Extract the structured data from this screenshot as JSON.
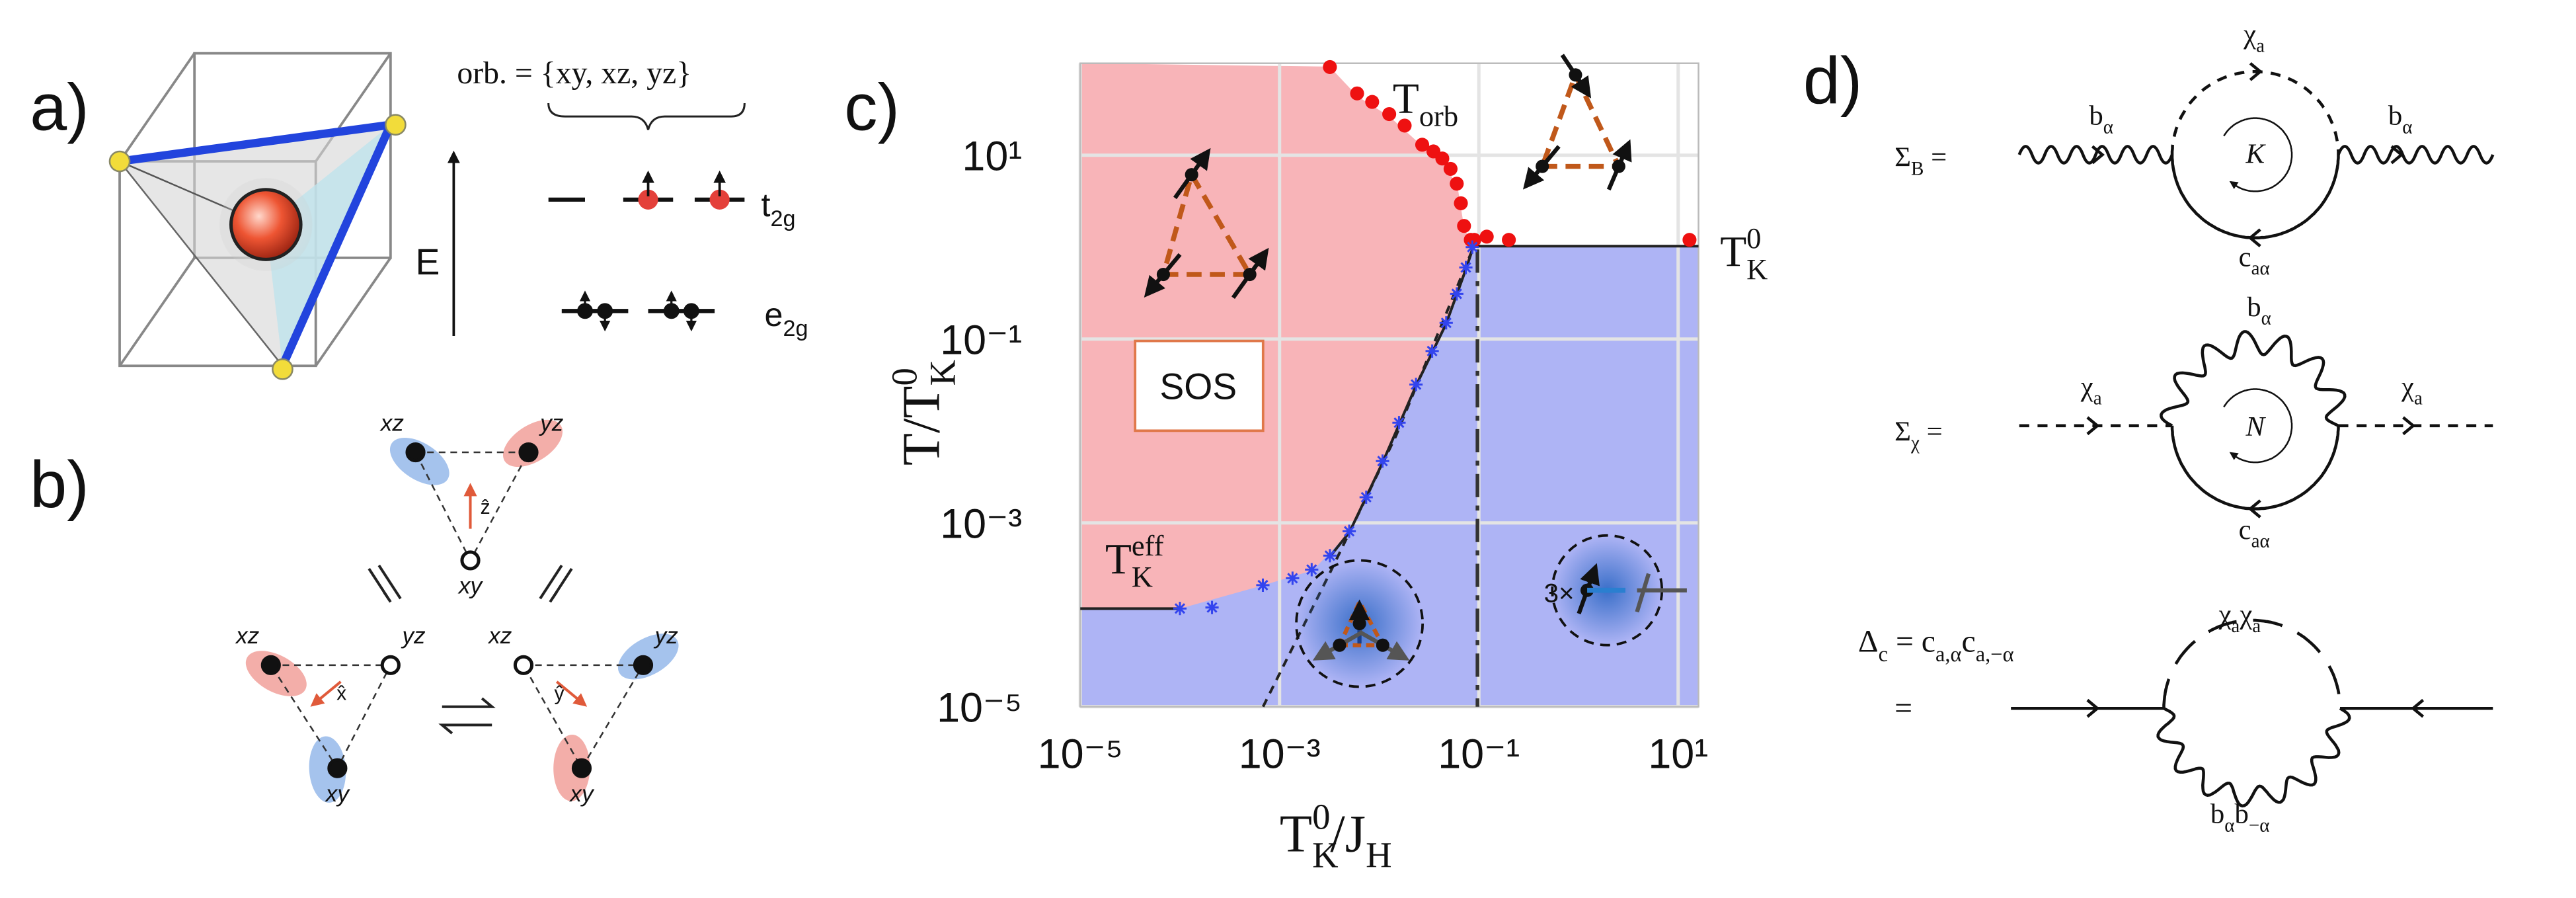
{
  "panels": {
    "a": {
      "label": "a)",
      "orbitals": "orb. = {xy, xz, yz}",
      "energy": "E",
      "t2g": [
        {
          "t": "t"
        },
        {
          "t": "2g",
          "s": "sub"
        }
      ],
      "e2g": [
        {
          "t": "e"
        },
        {
          "t": "2g",
          "s": "sub"
        }
      ]
    },
    "b": {
      "label": "b)",
      "triangles": [
        {
          "labels": [
            "xz",
            "yz",
            "xy"
          ],
          "axis": "ẑ"
        },
        {
          "labels": [
            "xz",
            "yz",
            "xy"
          ],
          "axis": "x̂"
        },
        {
          "labels": [
            "xz",
            "yz",
            "xy"
          ],
          "axis": "ŷ"
        }
      ]
    },
    "d": {
      "label": "d)",
      "sigma_b": [
        {
          "t": "Σ"
        },
        {
          "t": "B",
          "s": "sub"
        },
        {
          "t": " ="
        }
      ],
      "sigma_chi": [
        {
          "t": "Σ"
        },
        {
          "t": "χ",
          "s": "sub"
        },
        {
          "t": " ="
        }
      ],
      "delta": [
        {
          "t": "Δ"
        },
        {
          "t": "c",
          "s": "sub"
        },
        {
          "t": " = c"
        },
        {
          "t": "a,α",
          "s": "sub"
        },
        {
          "t": "c"
        },
        {
          "t": "a,−α",
          "s": "sub"
        }
      ],
      "equals": "=",
      "b_alpha": [
        {
          "t": "b"
        },
        {
          "t": "α",
          "s": "sub"
        }
      ],
      "chi_a": [
        {
          "t": "χ"
        },
        {
          "t": "a",
          "s": "sub"
        }
      ],
      "c_a_alpha": [
        {
          "t": "c"
        },
        {
          "t": "aα",
          "s": "sub"
        }
      ],
      "K": "K",
      "N": "N",
      "chi_chi": [
        {
          "t": "χ"
        },
        {
          "t": "a",
          "s": "sub"
        },
        {
          "t": "χ"
        },
        {
          "t": "a",
          "s": "sub"
        }
      ],
      "b_b": [
        {
          "t": "b"
        },
        {
          "t": "α",
          "s": "sub"
        },
        {
          "t": "b"
        },
        {
          "t": "−α",
          "s": "sub"
        }
      ]
    }
  },
  "chart_data": {
    "type": "scatter",
    "label": "c)",
    "x_label": [
      {
        "t": "T"
      },
      {
        "t": "K",
        "s": "sub"
      },
      {
        "t": "0",
        "s": "sup"
      },
      {
        "t": "/J"
      },
      {
        "t": "H",
        "s": "sub"
      }
    ],
    "y_label": [
      {
        "t": "T/T"
      },
      {
        "t": "K",
        "s": "sub"
      },
      {
        "t": "0",
        "s": "sup"
      }
    ],
    "xscale": "log",
    "yscale": "log",
    "grid": true,
    "xlim": [
      1e-05,
      16
    ],
    "ylim": [
      1e-05,
      100
    ],
    "xticks": [
      {
        "value": 1e-05,
        "label": "10⁻⁵"
      },
      {
        "value": 0.001,
        "label": "10⁻³"
      },
      {
        "value": 0.1,
        "label": "10⁻¹"
      },
      {
        "value": 10,
        "label": "10¹"
      }
    ],
    "yticks": [
      {
        "value": 1e-05,
        "label": "10⁻⁵"
      },
      {
        "value": 0.001,
        "label": "10⁻³"
      },
      {
        "value": 0.1,
        "label": "10⁻¹"
      },
      {
        "value": 10,
        "label": "10¹"
      }
    ],
    "series": [
      {
        "color": "#ee1111",
        "marker": "circle",
        "x": [
          0.0032,
          0.006,
          0.0085,
          0.0126,
          0.018,
          0.027,
          0.035,
          0.043,
          0.052,
          0.06,
          0.066,
          0.071,
          0.083,
          0.09,
          0.12,
          0.2,
          13
        ],
        "values": [
          91,
          47,
          38,
          28,
          21,
          13,
          11,
          9.2,
          7.1,
          4.9,
          3,
          1.7,
          1.2,
          1.2,
          1.3,
          1.2,
          1.2
        ]
      },
      {
        "color": "#3344ee",
        "marker": "star",
        "x": [
          0.0001,
          0.00021,
          0.00068,
          0.00135,
          0.0021,
          0.0032,
          0.005,
          0.0074,
          0.0108,
          0.0158,
          0.0234,
          0.034,
          0.047,
          0.06,
          0.074,
          0.086
        ],
        "values": [
          0.000117,
          0.00012,
          0.00021,
          0.00025,
          0.00031,
          0.00044,
          0.00081,
          0.0019,
          0.0047,
          0.0123,
          0.032,
          0.074,
          0.15,
          0.31,
          0.6,
          1.0
        ]
      }
    ],
    "annotations": {
      "t_orb": [
        {
          "t": "T"
        },
        {
          "t": "orb",
          "s": "sub"
        }
      ],
      "t_k0": [
        {
          "t": "T"
        },
        {
          "t": "K",
          "s": "sub"
        },
        {
          "t": "0",
          "s": "sup"
        }
      ],
      "t_keff": [
        {
          "t": "T"
        },
        {
          "t": "K",
          "s": "sub"
        },
        {
          "t": "eff",
          "s": "sup"
        }
      ],
      "sos": "SOS",
      "three": "3×"
    }
  }
}
